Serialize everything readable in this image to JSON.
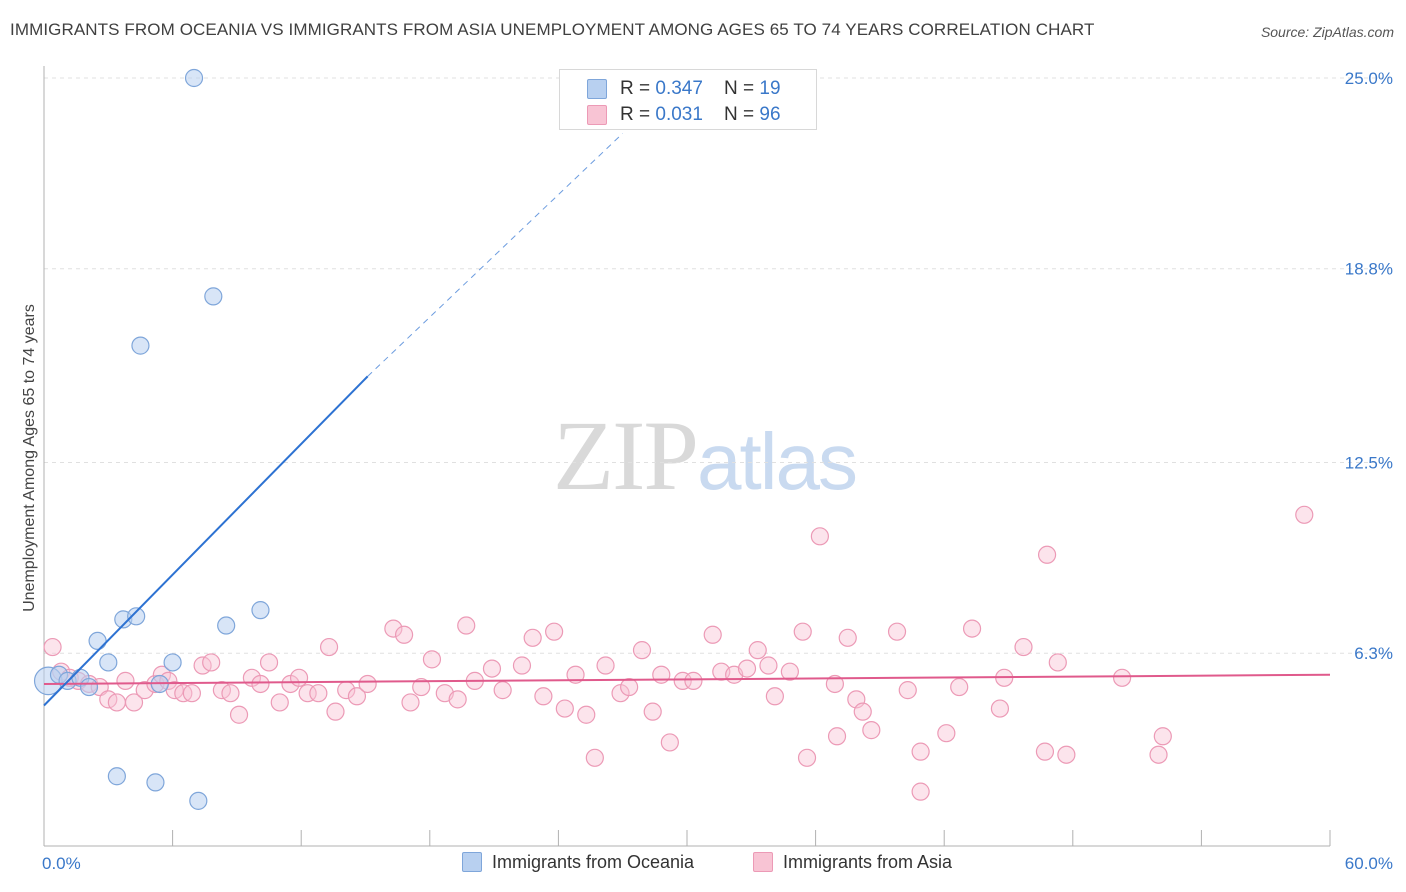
{
  "title": "IMMIGRANTS FROM OCEANIA VS IMMIGRANTS FROM ASIA UNEMPLOYMENT AMONG AGES 65 TO 74 YEARS CORRELATION CHART",
  "source": "Source: ZipAtlas.com",
  "watermark": {
    "zip": "ZIP",
    "atlas": "atlas"
  },
  "legend": {
    "rows": [
      {
        "r_label": "R = ",
        "r_value": "0.347",
        "n_label": "N = ",
        "n_value": "19"
      },
      {
        "r_label": "R = ",
        "r_value": "0.031",
        "n_label": "N = ",
        "n_value": "96"
      }
    ]
  },
  "colors": {
    "oceania_fill": "#b8d0f0",
    "oceania_stroke": "#7fa6da",
    "oceania_line": "#2d72d2",
    "asia_fill": "#f8c4d4",
    "asia_stroke": "#ec9ab6",
    "asia_line": "#e05a8c",
    "tick_label": "#3a78c9",
    "grid": "#e0e0e0"
  },
  "chart_data": {
    "type": "scatter",
    "title": "IMMIGRANTS FROM OCEANIA VS IMMIGRANTS FROM ASIA UNEMPLOYMENT AMONG AGES 65 TO 74 YEARS CORRELATION CHART",
    "xlabel": "",
    "ylabel": "Unemployment Among Ages 65 to 74 years",
    "xlim": [
      0,
      60
    ],
    "ylim": [
      0,
      25
    ],
    "x_tick_labels": [
      "0.0%",
      "60.0%"
    ],
    "y_ticks": [
      6.3,
      12.5,
      18.8,
      25.0
    ],
    "y_tick_labels": [
      "6.3%",
      "12.5%",
      "18.8%",
      "25.0%"
    ],
    "grid": true,
    "legend_position": "top-center",
    "series": [
      {
        "name": "Immigrants from Oceania",
        "r": 0.347,
        "n": 19,
        "trend": {
          "x1": 0.0,
          "y1": 4.6,
          "x2": 15.1,
          "y2": 15.3,
          "dashed_to_x": 27.0,
          "dashed_to_y": 23.2
        },
        "points": [
          {
            "x": 0.2,
            "y": 5.4,
            "size": 22
          },
          {
            "x": 0.7,
            "y": 5.6
          },
          {
            "x": 1.1,
            "y": 5.4
          },
          {
            "x": 1.7,
            "y": 5.5
          },
          {
            "x": 2.1,
            "y": 5.2
          },
          {
            "x": 2.5,
            "y": 6.7
          },
          {
            "x": 3.0,
            "y": 6.0
          },
          {
            "x": 3.4,
            "y": 2.3
          },
          {
            "x": 3.7,
            "y": 7.4
          },
          {
            "x": 4.3,
            "y": 7.5
          },
          {
            "x": 4.5,
            "y": 16.3
          },
          {
            "x": 5.2,
            "y": 2.1
          },
          {
            "x": 5.4,
            "y": 5.3
          },
          {
            "x": 6.0,
            "y": 6.0
          },
          {
            "x": 7.0,
            "y": 25.0
          },
          {
            "x": 7.2,
            "y": 1.5
          },
          {
            "x": 7.9,
            "y": 17.9
          },
          {
            "x": 8.5,
            "y": 7.2
          },
          {
            "x": 10.1,
            "y": 7.7
          }
        ]
      },
      {
        "name": "Immigrants from Asia",
        "r": 0.031,
        "n": 96,
        "trend": {
          "x1": 0.0,
          "y1": 5.3,
          "x2": 60.0,
          "y2": 5.6
        },
        "points": [
          {
            "x": 0.4,
            "y": 6.5
          },
          {
            "x": 0.8,
            "y": 5.7
          },
          {
            "x": 1.2,
            "y": 5.5
          },
          {
            "x": 1.6,
            "y": 5.4
          },
          {
            "x": 2.1,
            "y": 5.3
          },
          {
            "x": 2.6,
            "y": 5.2
          },
          {
            "x": 3.0,
            "y": 4.8
          },
          {
            "x": 3.4,
            "y": 4.7
          },
          {
            "x": 3.8,
            "y": 5.4
          },
          {
            "x": 4.2,
            "y": 4.7
          },
          {
            "x": 4.7,
            "y": 5.1
          },
          {
            "x": 5.2,
            "y": 5.3
          },
          {
            "x": 5.5,
            "y": 5.6
          },
          {
            "x": 5.8,
            "y": 5.4
          },
          {
            "x": 6.1,
            "y": 5.1
          },
          {
            "x": 6.5,
            "y": 5.0
          },
          {
            "x": 6.9,
            "y": 5.0
          },
          {
            "x": 7.4,
            "y": 5.9
          },
          {
            "x": 7.8,
            "y": 6.0
          },
          {
            "x": 8.3,
            "y": 5.1
          },
          {
            "x": 8.7,
            "y": 5.0
          },
          {
            "x": 9.1,
            "y": 4.3
          },
          {
            "x": 9.7,
            "y": 5.5
          },
          {
            "x": 10.1,
            "y": 5.3
          },
          {
            "x": 10.5,
            "y": 6.0
          },
          {
            "x": 11.0,
            "y": 4.7
          },
          {
            "x": 11.5,
            "y": 5.3
          },
          {
            "x": 11.9,
            "y": 5.5
          },
          {
            "x": 12.3,
            "y": 5.0
          },
          {
            "x": 12.8,
            "y": 5.0
          },
          {
            "x": 13.3,
            "y": 6.5
          },
          {
            "x": 13.6,
            "y": 4.4
          },
          {
            "x": 14.1,
            "y": 5.1
          },
          {
            "x": 14.6,
            "y": 4.9
          },
          {
            "x": 15.1,
            "y": 5.3
          },
          {
            "x": 16.3,
            "y": 7.1
          },
          {
            "x": 16.8,
            "y": 6.9
          },
          {
            "x": 17.1,
            "y": 4.7
          },
          {
            "x": 17.6,
            "y": 5.2
          },
          {
            "x": 18.1,
            "y": 6.1
          },
          {
            "x": 18.7,
            "y": 5.0
          },
          {
            "x": 19.3,
            "y": 4.8
          },
          {
            "x": 19.7,
            "y": 7.2
          },
          {
            "x": 20.1,
            "y": 5.4
          },
          {
            "x": 20.9,
            "y": 5.8
          },
          {
            "x": 21.4,
            "y": 5.1
          },
          {
            "x": 22.3,
            "y": 5.9
          },
          {
            "x": 22.8,
            "y": 6.8
          },
          {
            "x": 23.3,
            "y": 4.9
          },
          {
            "x": 23.8,
            "y": 7.0
          },
          {
            "x": 24.3,
            "y": 4.5
          },
          {
            "x": 24.8,
            "y": 5.6
          },
          {
            "x": 25.3,
            "y": 4.3
          },
          {
            "x": 25.7,
            "y": 2.9
          },
          {
            "x": 26.2,
            "y": 5.9
          },
          {
            "x": 26.9,
            "y": 5.0
          },
          {
            "x": 27.3,
            "y": 5.2
          },
          {
            "x": 27.9,
            "y": 6.4
          },
          {
            "x": 28.4,
            "y": 4.4
          },
          {
            "x": 28.8,
            "y": 5.6
          },
          {
            "x": 29.2,
            "y": 3.4
          },
          {
            "x": 29.8,
            "y": 5.4
          },
          {
            "x": 30.3,
            "y": 5.4
          },
          {
            "x": 31.2,
            "y": 6.9
          },
          {
            "x": 31.6,
            "y": 5.7
          },
          {
            "x": 32.2,
            "y": 5.6
          },
          {
            "x": 32.8,
            "y": 5.8
          },
          {
            "x": 33.3,
            "y": 6.4
          },
          {
            "x": 33.8,
            "y": 5.9
          },
          {
            "x": 34.1,
            "y": 4.9
          },
          {
            "x": 34.8,
            "y": 5.7
          },
          {
            "x": 35.4,
            "y": 7.0
          },
          {
            "x": 35.6,
            "y": 2.9
          },
          {
            "x": 36.2,
            "y": 10.1
          },
          {
            "x": 36.9,
            "y": 5.3
          },
          {
            "x": 37.0,
            "y": 3.6
          },
          {
            "x": 37.5,
            "y": 6.8
          },
          {
            "x": 37.9,
            "y": 4.8
          },
          {
            "x": 38.2,
            "y": 4.4
          },
          {
            "x": 38.6,
            "y": 3.8
          },
          {
            "x": 39.8,
            "y": 7.0
          },
          {
            "x": 40.3,
            "y": 5.1
          },
          {
            "x": 40.9,
            "y": 3.1
          },
          {
            "x": 40.9,
            "y": 1.8
          },
          {
            "x": 42.1,
            "y": 3.7
          },
          {
            "x": 42.7,
            "y": 5.2
          },
          {
            "x": 43.3,
            "y": 7.1
          },
          {
            "x": 44.8,
            "y": 5.5
          },
          {
            "x": 44.6,
            "y": 4.5
          },
          {
            "x": 45.7,
            "y": 6.5
          },
          {
            "x": 46.7,
            "y": 3.1
          },
          {
            "x": 47.7,
            "y": 3.0
          },
          {
            "x": 46.8,
            "y": 9.5
          },
          {
            "x": 47.3,
            "y": 6.0
          },
          {
            "x": 50.3,
            "y": 5.5
          },
          {
            "x": 52.0,
            "y": 3.0
          },
          {
            "x": 52.2,
            "y": 3.6
          },
          {
            "x": 58.8,
            "y": 10.8
          }
        ]
      }
    ]
  },
  "bottom_legend": {
    "oceania_label": "Immigrants from Oceania",
    "asia_label": "Immigrants from Asia"
  }
}
